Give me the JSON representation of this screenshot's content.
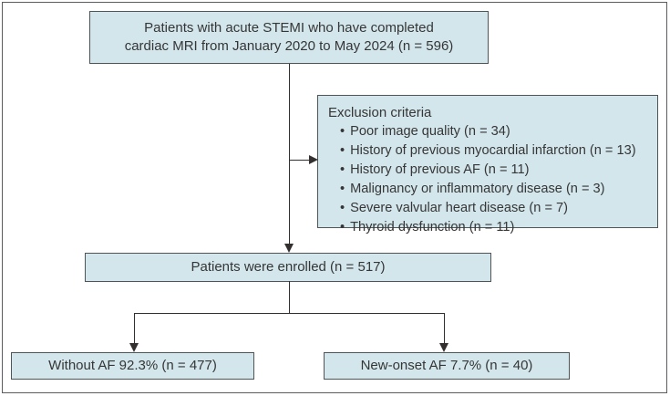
{
  "flowchart": {
    "top_box": {
      "line1": "Patients with acute STEMI who have completed",
      "line2": "cardiac MRI from January 2020 to May 2024 (n = 596)"
    },
    "exclusion_box": {
      "title": "Exclusion criteria",
      "bullet": "•",
      "items": [
        "Poor image quality (n = 34)",
        "History of previous myocardial infarction (n = 13)",
        "History of previous AF (n = 11)",
        "Malignancy or inflammatory disease (n = 3)",
        "Severe valvular heart disease (n = 7)",
        "Thyroid dysfunction (n = 11)"
      ]
    },
    "enrolled_box": {
      "label": "Patients were enrolled (n = 517)"
    },
    "without_af_box": {
      "label": "Without AF 92.3% (n = 477)"
    },
    "new_onset_af_box": {
      "label": "New-onset AF 7.7% (n = 40)"
    }
  },
  "colors": {
    "box_fill": "#d3e6ec",
    "box_border": "#4f5457",
    "line": "#332f2e",
    "frame": "#5a5c5e",
    "text": "#363636"
  }
}
